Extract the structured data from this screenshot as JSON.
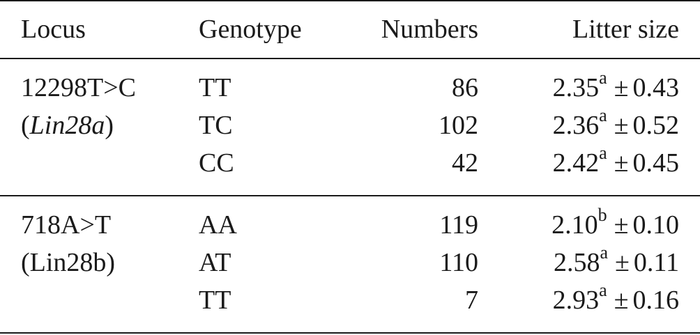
{
  "table": {
    "headers": {
      "locus": "Locus",
      "genotype": "Genotype",
      "numbers": "Numbers",
      "litter_size": "Litter size"
    },
    "groups": [
      {
        "locus_line1": "12298T>C",
        "locus_line2_open": "(",
        "locus_line2_gene": "Lin28a",
        "locus_line2_close": ")",
        "rows": [
          {
            "genotype": "TT",
            "numbers": "86",
            "mean": "2.35",
            "sup": "a",
            "pm": "±",
            "sd": "0.43"
          },
          {
            "genotype": "TC",
            "numbers": "102",
            "mean": "2.36",
            "sup": "a",
            "pm": "±",
            "sd": "0.52"
          },
          {
            "genotype": "CC",
            "numbers": "42",
            "mean": "2.42",
            "sup": "a",
            "pm": "±",
            "sd": "0.45"
          }
        ]
      },
      {
        "locus_line1": "718A>T",
        "locus_line2": "(Lin28b)",
        "rows": [
          {
            "genotype": "AA",
            "numbers": "119",
            "mean": "2.10",
            "sup": "b",
            "pm": "±",
            "sd": "0.10"
          },
          {
            "genotype": "AT",
            "numbers": "110",
            "mean": "2.58",
            "sup": "a",
            "pm": "±",
            "sd": "0.11"
          },
          {
            "genotype": "TT",
            "numbers": "7",
            "mean": "2.93",
            "sup": "a",
            "pm": "±",
            "sd": "0.16"
          }
        ]
      }
    ]
  }
}
